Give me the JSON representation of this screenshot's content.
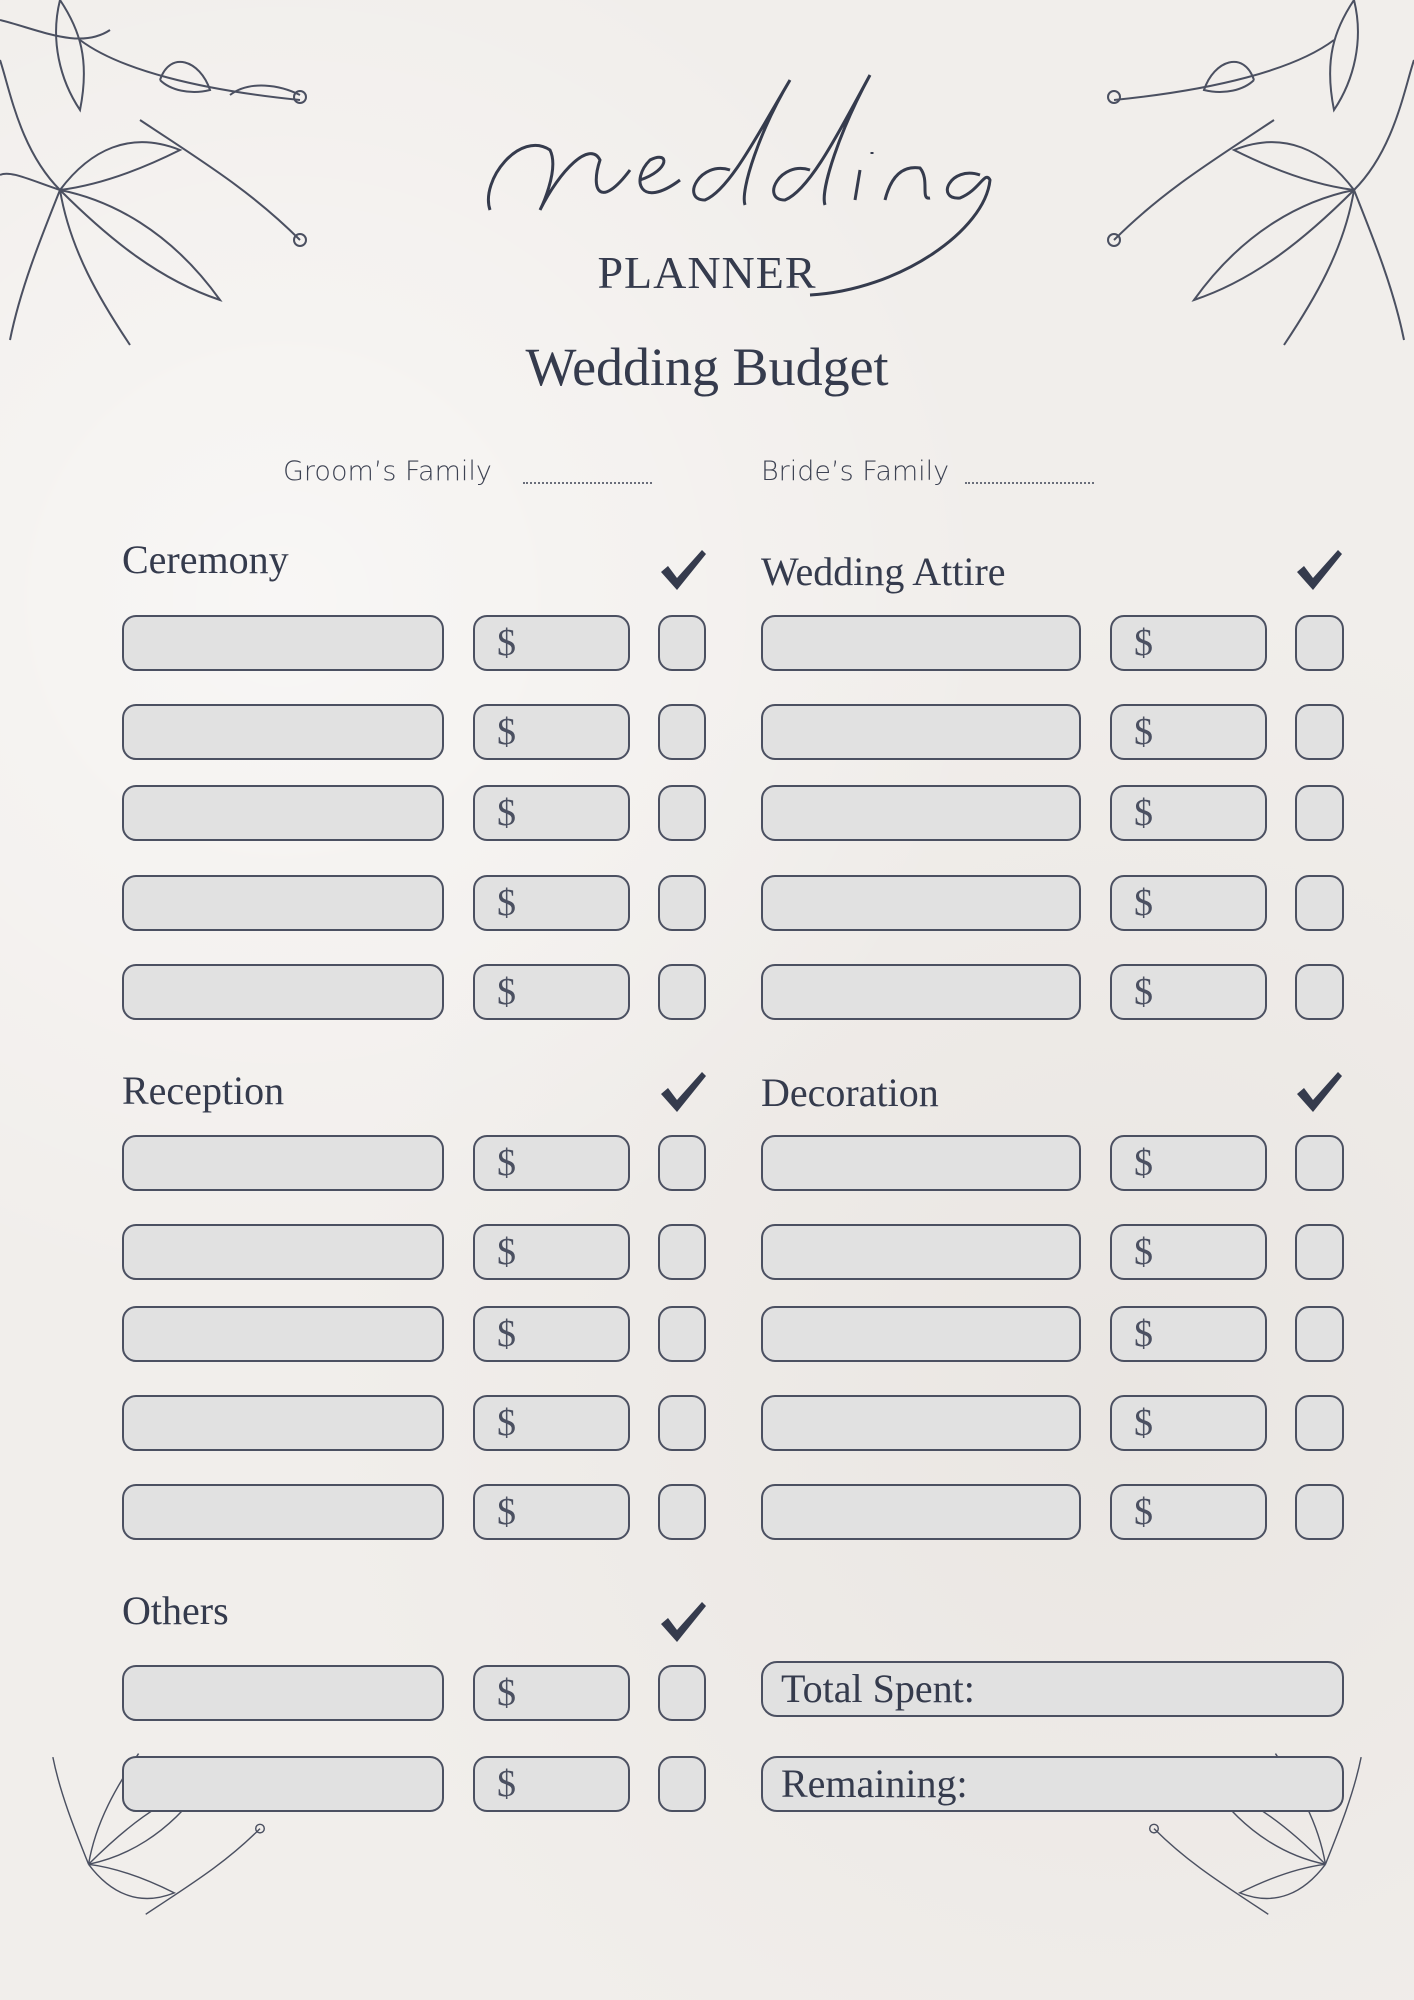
{
  "header": {
    "script_title": "Wedding",
    "subtitle": "PLANNER",
    "page_title": "Wedding Budget"
  },
  "families": {
    "groom_label": "Groom’s Family",
    "bride_label": "Bride’s Family"
  },
  "currency_symbol": "$",
  "sections": {
    "ceremony": {
      "title": "Ceremony",
      "rows": 5
    },
    "wedding_attire": {
      "title": "Wedding Attire",
      "rows": 5
    },
    "reception": {
      "title": "Reception",
      "rows": 5
    },
    "decoration": {
      "title": "Decoration",
      "rows": 5
    },
    "others": {
      "title": "Others",
      "rows": 2
    }
  },
  "summary": {
    "total_spent_label": "Total Spent:",
    "remaining_label": "Remaining:"
  },
  "colors": {
    "ink": "#353b4d",
    "field_fill": "#e1e1e1",
    "paper": "#f1eeeb"
  },
  "icons": [
    "checkmark-icon",
    "lily-flower-icon"
  ]
}
